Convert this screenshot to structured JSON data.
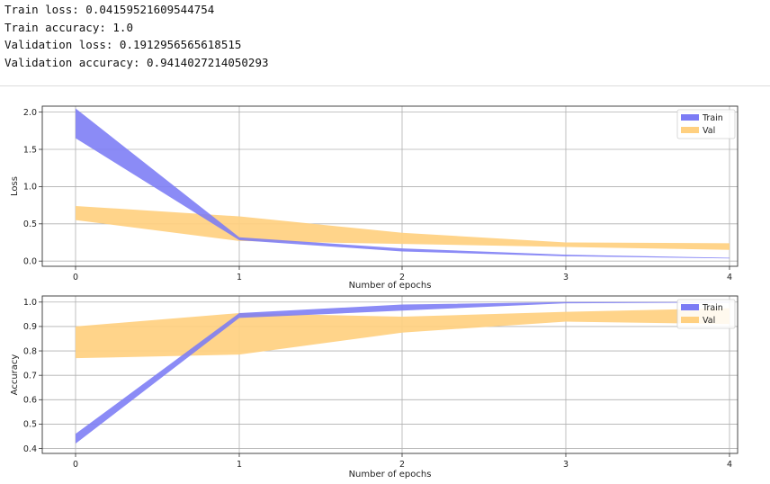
{
  "output": {
    "lines": [
      "Train loss: 0.04159521609544754",
      "Train accuracy: 1.0",
      "Validation loss: 0.1912956565618515",
      "Validation accuracy: 0.9414027214050293"
    ]
  },
  "colors": {
    "train": "#7b7bf5",
    "val": "#ffd080"
  },
  "chart_data": [
    {
      "type": "area",
      "xlabel": "Number of epochs",
      "ylabel": "Loss",
      "x": [
        0,
        1,
        2,
        3,
        4
      ],
      "xticks": [
        "0",
        "1",
        "2",
        "3",
        "4"
      ],
      "ylim": [
        -0.07,
        2.08
      ],
      "yticks": [
        0.0,
        0.5,
        1.0,
        1.5,
        2.0
      ],
      "ytick_labels": [
        "0.0",
        "0.5",
        "1.0",
        "1.5",
        "2.0"
      ],
      "grid": true,
      "legend": "top-right",
      "series": [
        {
          "name": "Train",
          "upper": [
            2.05,
            0.32,
            0.17,
            0.085,
            0.045
          ],
          "lower": [
            1.65,
            0.28,
            0.13,
            0.065,
            0.035
          ]
        },
        {
          "name": "Val",
          "upper": [
            0.74,
            0.6,
            0.38,
            0.25,
            0.24
          ],
          "lower": [
            0.55,
            0.27,
            0.23,
            0.19,
            0.15
          ]
        }
      ]
    },
    {
      "type": "area",
      "xlabel": "Number of epochs",
      "ylabel": "Accuracy",
      "x": [
        0,
        1,
        2,
        3,
        4
      ],
      "xticks": [
        "0",
        "1",
        "2",
        "3",
        "4"
      ],
      "ylim": [
        0.38,
        1.025
      ],
      "yticks": [
        0.4,
        0.5,
        0.6,
        0.7,
        0.8,
        0.9,
        1.0
      ],
      "ytick_labels": [
        "0.4",
        "0.5",
        "0.6",
        "0.7",
        "0.8",
        "0.9",
        "1.0"
      ],
      "grid": true,
      "legend": "top-right",
      "series": [
        {
          "name": "Train",
          "upper": [
            0.46,
            0.955,
            0.99,
            1.0,
            1.0
          ],
          "lower": [
            0.42,
            0.935,
            0.965,
            0.995,
            0.998
          ]
        },
        {
          "name": "Val",
          "upper": [
            0.9,
            0.955,
            0.94,
            0.96,
            0.975
          ],
          "lower": [
            0.77,
            0.785,
            0.875,
            0.92,
            0.91
          ]
        }
      ]
    }
  ]
}
